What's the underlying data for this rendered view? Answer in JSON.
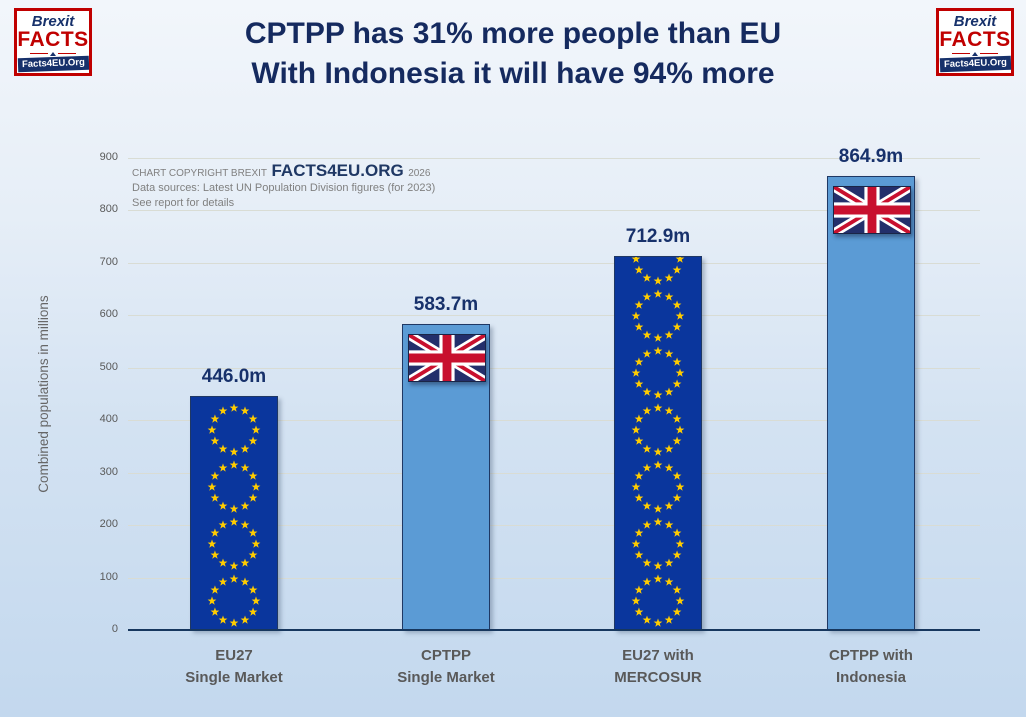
{
  "logo": {
    "brexit": "Brexit",
    "facts": "FACTS",
    "site": "Facts4EU.Org"
  },
  "title": {
    "line1": "CPTPP has 31% more people than EU",
    "line2": "With Indonesia it will have 94% more"
  },
  "copyright": {
    "prefix": "CHART COPYRIGHT BREXIT",
    "brand": "FACTS4EU.ORG",
    "year": "2026",
    "sources": "Data sources: Latest UN Population Division figures (for 2023)",
    "note": "See report for details"
  },
  "chart_data": {
    "type": "bar",
    "title": "CPTPP has 31% more people than EU - With Indonesia it will have 94% more",
    "xlabel": "",
    "ylabel": "Combined populations in millions",
    "ylim": [
      0,
      900
    ],
    "ytick_interval": 100,
    "grid": true,
    "legend": "none",
    "categories": [
      "EU27 Single Market",
      "CPTPP Single Market",
      "EU27 with MERCOSUR",
      "CPTPP with Indonesia"
    ],
    "category_lines": [
      [
        "EU27",
        "Single Market"
      ],
      [
        "CPTPP",
        "Single Market"
      ],
      [
        "EU27 with",
        "MERCOSUR"
      ],
      [
        "CPTPP with",
        "Indonesia"
      ]
    ],
    "values": [
      446.0,
      583.7,
      712.9,
      864.9
    ],
    "value_labels": [
      "446.0m",
      "583.7m",
      "712.9m",
      "864.9m"
    ],
    "bar_styles": [
      "eu-flag",
      "uk-flag",
      "eu-flag",
      "uk-flag"
    ],
    "colors": {
      "eu_bar": "#0a369d",
      "cptpp_bar": "#5b9bd5",
      "bar_border": "#1f3864",
      "star": "#ffcc00",
      "value_label": "#17316b",
      "title": "#152a5f",
      "axis_line": "#17375e",
      "gridline": "#d9dcd4",
      "category_label": "#595959",
      "flag_navy": "#232f6b",
      "flag_red": "#c8102e",
      "logo_red": "#c00000"
    }
  }
}
